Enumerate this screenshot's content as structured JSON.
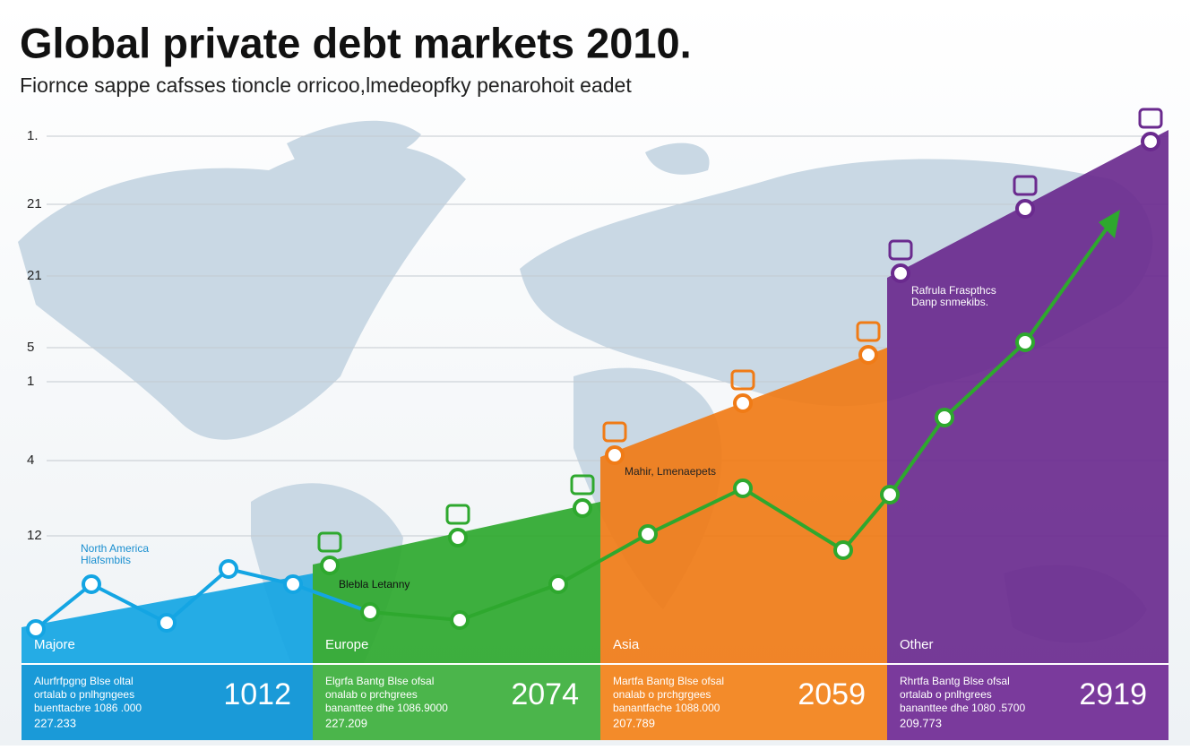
{
  "header": {
    "title": "Global private debt markets 2010.",
    "subtitle": "Fiornce sappe cafsses tioncle orricoo,lmedeopfky penarohoit eadet"
  },
  "axis_labels": [
    "1.",
    "21",
    "21",
    "5",
    "1",
    "4",
    "12"
  ],
  "annotations": [
    {
      "lines": [
        "North America",
        "Hlafsmbits"
      ]
    },
    {
      "lines": [
        "Blebla Letanny"
      ]
    },
    {
      "lines": [
        "Mahir, Lmenaepets"
      ]
    },
    {
      "lines": [
        "Rafrula Fraspthcs",
        "Danp snmekibs."
      ]
    }
  ],
  "regions": [
    {
      "name": "Majore",
      "lines": [
        "Alurfrfpgng Blse oltal",
        "ortalab o pnlhgngees",
        "buenttacbre 1086 .000"
      ],
      "figure": "227.233",
      "total": "1012"
    },
    {
      "name": "Europe",
      "lines": [
        "Elgrfa Bantg Blse ofsal",
        "onalab o prchgrees",
        "bananttee dhe 1086.9000"
      ],
      "figure": "227.209",
      "total": "2074"
    },
    {
      "name": "Asia",
      "lines": [
        "Martfa Bantg Blse ofsal",
        "onalab o prchgrgees",
        "banantfache 1088.000"
      ],
      "figure": "207.789",
      "total": "2059"
    },
    {
      "name": "Other",
      "lines": [
        "Rhrtfa Bantg Blse ofsal",
        "ortalab o pnlhgrees",
        "bananttee dhe 1080 .5700"
      ],
      "figure": "209.773",
      "total": "2919"
    }
  ]
}
